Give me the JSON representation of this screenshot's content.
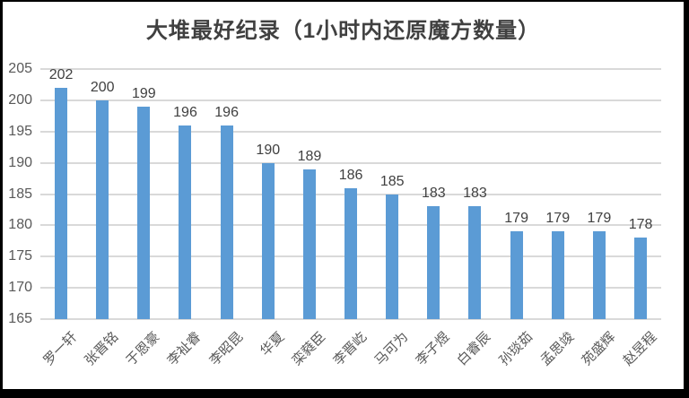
{
  "chart_data": {
    "type": "bar",
    "title": "大堆最好纪录（1小时内还原魔方数量）",
    "categories": [
      "罗一轩",
      "张晋铭",
      "于恩豪",
      "李祉睿",
      "李昭昆",
      "华夏",
      "栾蕤臣",
      "李晋屹",
      "马可为",
      "李子煜",
      "白睿辰",
      "孙琰茹",
      "孟思竣",
      "苑盛辉",
      "赵昱程"
    ],
    "values": [
      202,
      200,
      199,
      196,
      196,
      190,
      189,
      186,
      185,
      183,
      183,
      179,
      179,
      179,
      178
    ],
    "data_labels_shown": true,
    "xlabel": "",
    "ylabel": "",
    "ylim": [
      165,
      205
    ],
    "yticks": [
      165,
      170,
      175,
      180,
      185,
      190,
      195,
      200,
      205
    ],
    "grid": true,
    "legend": false,
    "colors": {
      "bar": "#5B9BD5",
      "gridline": "#D9D9D9",
      "axis_tick_label": "#595959",
      "category_label": "#595959",
      "data_label": "#404040",
      "title": "#404040"
    }
  }
}
